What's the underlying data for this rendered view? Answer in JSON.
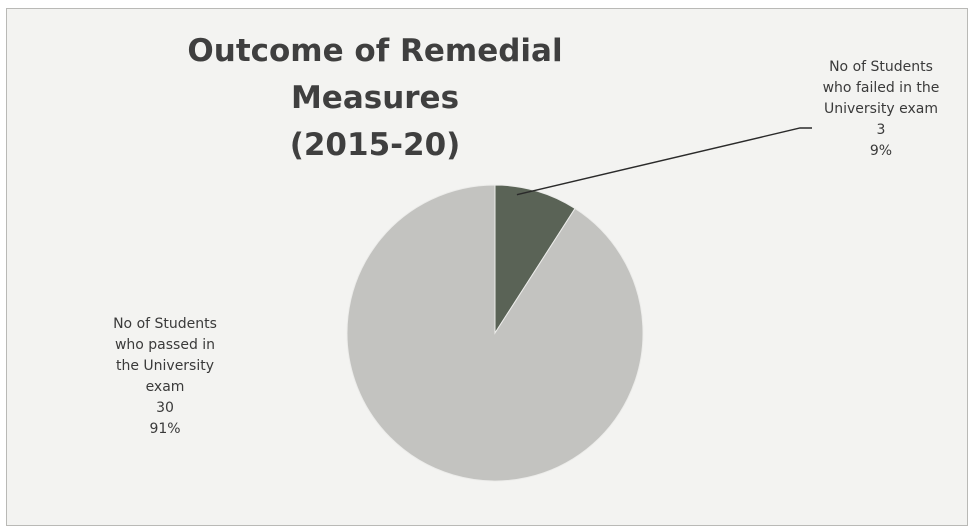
{
  "chart_data": {
    "type": "pie",
    "title": "Outcome of Remedial Measures",
    "subtitle": "(2015-20)",
    "categories": [
      "No of Students who failed in the University exam",
      "No of Students who passed in the University exam"
    ],
    "values": [
      3,
      30
    ],
    "percentages": [
      "9%",
      "91%"
    ],
    "colors": [
      "#5a6356",
      "#c3c3c0"
    ],
    "legend": "none",
    "data_labels": {
      "failed": {
        "lines": [
          "No of Students",
          "who failed in the",
          "University exam"
        ],
        "value": "3",
        "percent": "9%"
      },
      "passed": {
        "lines": [
          "No of Students",
          "who passed in",
          "the University",
          "exam"
        ],
        "value": "30",
        "percent": "91%"
      }
    }
  }
}
